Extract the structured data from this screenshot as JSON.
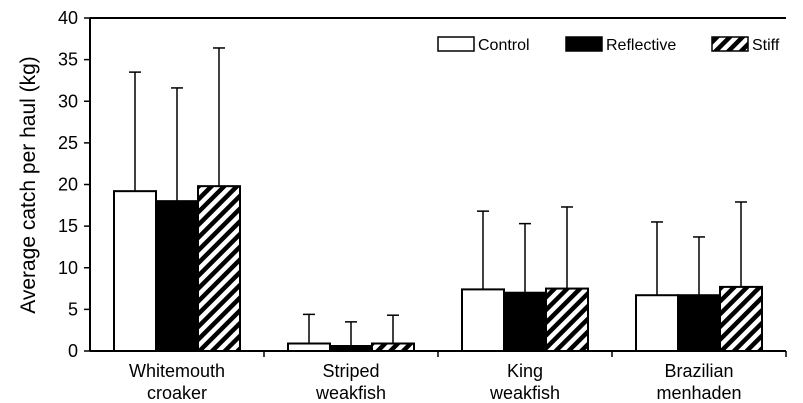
{
  "chart_data": {
    "type": "bar",
    "ylabel": "Average catch per haul (kg)",
    "xlabel": "",
    "ylim": [
      0,
      40
    ],
    "yticks": [
      0,
      5,
      10,
      15,
      20,
      25,
      30,
      35,
      40
    ],
    "categories": [
      [
        "Whitemouth",
        "croaker"
      ],
      [
        "Striped",
        "weakfish"
      ],
      [
        "King",
        "weakfish"
      ],
      [
        "Brazilian",
        "menhaden"
      ]
    ],
    "series": [
      {
        "name": "Control",
        "fill": "white",
        "values": [
          19.2,
          0.9,
          7.4,
          6.7
        ],
        "errors": [
          14.3,
          3.5,
          9.4,
          8.8
        ]
      },
      {
        "name": "Reflective",
        "fill": "black",
        "values": [
          18.0,
          0.6,
          7.0,
          6.7
        ],
        "errors": [
          13.6,
          2.9,
          8.3,
          7.0
        ]
      },
      {
        "name": "Stiff",
        "fill": "hatch",
        "values": [
          19.8,
          0.9,
          7.5,
          7.7
        ],
        "errors": [
          16.6,
          3.4,
          9.8,
          10.2
        ]
      }
    ],
    "error_bars": "upper",
    "legend_position": "top-right",
    "grid": false
  }
}
